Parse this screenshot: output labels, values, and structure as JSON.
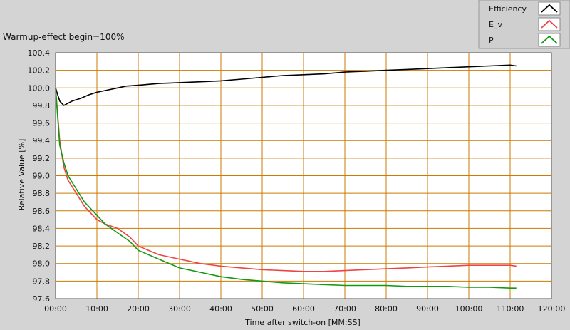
{
  "chart_data": {
    "type": "line",
    "title": "Warmup-effect begin=100%",
    "xlabel": "Time after switch-on [MM:SS]",
    "ylabel": "Relative Value [%]",
    "xlim": [
      0,
      120
    ],
    "ylim": [
      97.6,
      100.4
    ],
    "x_ticks": [
      "00:00",
      "10:00",
      "20:00",
      "30:00",
      "40:00",
      "50:00",
      "60:00",
      "70:00",
      "80:00",
      "90:00",
      "100:00",
      "110:00",
      "120:00"
    ],
    "y_ticks": [
      "100.4",
      "100.2",
      "100.0",
      "99.8",
      "99.6",
      "99.4",
      "99.2",
      "99.0",
      "98.8",
      "98.6",
      "98.4",
      "98.2",
      "98.0",
      "97.8",
      "97.6"
    ],
    "grid": true,
    "legend_position": "top-right",
    "x_unit_note": "x values in minutes after switch-on",
    "series": [
      {
        "name": "Efficiency",
        "color": "#000000",
        "x": [
          0,
          1,
          2,
          4,
          6,
          8,
          10,
          12,
          15,
          17,
          20,
          25,
          30,
          35,
          40,
          45,
          50,
          55,
          60,
          65,
          70,
          75,
          80,
          85,
          90,
          95,
          100,
          105,
          110,
          111.5
        ],
        "y": [
          100.0,
          99.85,
          99.8,
          99.85,
          99.88,
          99.92,
          99.95,
          99.97,
          100.0,
          100.02,
          100.03,
          100.05,
          100.06,
          100.07,
          100.08,
          100.1,
          100.12,
          100.14,
          100.15,
          100.16,
          100.18,
          100.19,
          100.2,
          100.21,
          100.22,
          100.23,
          100.24,
          100.25,
          100.26,
          100.25
        ]
      },
      {
        "name": "E_v",
        "color": "#ee4444",
        "x": [
          0,
          1,
          2,
          3,
          5,
          7,
          10,
          12,
          15,
          18,
          20,
          25,
          30,
          35,
          40,
          45,
          50,
          55,
          60,
          65,
          70,
          75,
          80,
          85,
          90,
          95,
          100,
          105,
          110,
          111.5
        ],
        "y": [
          100.0,
          99.4,
          99.1,
          98.95,
          98.8,
          98.65,
          98.5,
          98.45,
          98.4,
          98.3,
          98.2,
          98.1,
          98.05,
          98.0,
          97.97,
          97.95,
          97.93,
          97.92,
          97.91,
          97.91,
          97.92,
          97.93,
          97.94,
          97.95,
          97.96,
          97.97,
          97.98,
          97.98,
          97.98,
          97.97
        ]
      },
      {
        "name": "P",
        "color": "#119911",
        "x": [
          0,
          1,
          2,
          3,
          5,
          7,
          10,
          12,
          15,
          18,
          20,
          25,
          30,
          35,
          40,
          45,
          50,
          55,
          60,
          65,
          70,
          75,
          80,
          85,
          90,
          95,
          100,
          105,
          110,
          111.5
        ],
        "y": [
          100.0,
          99.35,
          99.15,
          99.0,
          98.85,
          98.7,
          98.55,
          98.45,
          98.35,
          98.25,
          98.15,
          98.05,
          97.95,
          97.9,
          97.85,
          97.82,
          97.8,
          97.78,
          97.77,
          97.76,
          97.75,
          97.75,
          97.75,
          97.74,
          97.74,
          97.74,
          97.73,
          97.73,
          97.72,
          97.72
        ]
      }
    ]
  },
  "colors": {
    "page_background": "#d4d4d4",
    "plot_background": "#ffffff",
    "grid": "#cc7a00",
    "legend_background": "#cfcfcf"
  }
}
